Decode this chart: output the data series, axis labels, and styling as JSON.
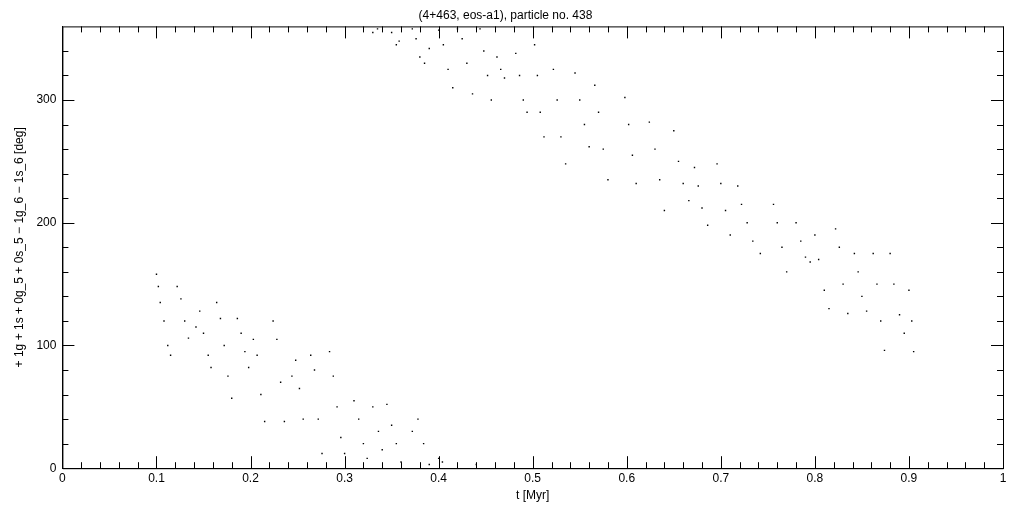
{
  "chart_data": {
    "type": "scatter",
    "title": "(4+463, eos-a1), particle no. 438",
    "xlabel": "t [Myr]",
    "ylabel": "+ 1g + 1s + 0g_5 + 0s_5 − 1g_6 − 1s_6 [deg]",
    "xlim": [
      0,
      1
    ],
    "ylim": [
      0,
      360
    ],
    "xticks": [
      0,
      {
        "value": 0.02,
        "label": null
      },
      {
        "value": 0.04,
        "label": null
      },
      {
        "value": 0.06,
        "label": null
      },
      {
        "value": 0.08,
        "label": null
      },
      0.1,
      {
        "value": 0.12,
        "label": null
      },
      {
        "value": 0.14,
        "label": null
      },
      {
        "value": 0.16,
        "label": null
      },
      {
        "value": 0.18,
        "label": null
      },
      0.2,
      {
        "value": 0.22,
        "label": null
      },
      {
        "value": 0.24,
        "label": null
      },
      {
        "value": 0.26,
        "label": null
      },
      {
        "value": 0.28,
        "label": null
      },
      0.3,
      {
        "value": 0.32,
        "label": null
      },
      {
        "value": 0.34,
        "label": null
      },
      {
        "value": 0.36,
        "label": null
      },
      {
        "value": 0.38,
        "label": null
      },
      0.4,
      {
        "value": 0.42,
        "label": null
      },
      {
        "value": 0.44,
        "label": null
      },
      {
        "value": 0.46,
        "label": null
      },
      {
        "value": 0.48,
        "label": null
      },
      0.5,
      {
        "value": 0.52,
        "label": null
      },
      {
        "value": 0.54,
        "label": null
      },
      {
        "value": 0.56,
        "label": null
      },
      {
        "value": 0.58,
        "label": null
      },
      0.6,
      {
        "value": 0.62,
        "label": null
      },
      {
        "value": 0.64,
        "label": null
      },
      {
        "value": 0.66,
        "label": null
      },
      {
        "value": 0.68,
        "label": null
      },
      0.7,
      {
        "value": 0.72,
        "label": null
      },
      {
        "value": 0.74,
        "label": null
      },
      {
        "value": 0.76,
        "label": null
      },
      {
        "value": 0.78,
        "label": null
      },
      0.8,
      {
        "value": 0.82,
        "label": null
      },
      {
        "value": 0.84,
        "label": null
      },
      {
        "value": 0.86,
        "label": null
      },
      {
        "value": 0.88,
        "label": null
      },
      0.9,
      {
        "value": 0.92,
        "label": null
      },
      {
        "value": 0.94,
        "label": null
      },
      {
        "value": 0.96,
        "label": null
      },
      {
        "value": 0.98,
        "label": null
      },
      1
    ],
    "yticks": [
      0,
      {
        "value": 20,
        "label": null
      },
      {
        "value": 40,
        "label": null
      },
      {
        "value": 60,
        "label": null
      },
      {
        "value": 80,
        "label": null
      },
      100,
      {
        "value": 120,
        "label": null
      },
      {
        "value": 140,
        "label": null
      },
      {
        "value": 160,
        "label": null
      },
      {
        "value": 180,
        "label": null
      },
      200,
      {
        "value": 220,
        "label": null
      },
      {
        "value": 240,
        "label": null
      },
      {
        "value": 260,
        "label": null
      },
      {
        "value": 280,
        "label": null
      },
      300,
      {
        "value": 320,
        "label": null
      },
      {
        "value": 340,
        "label": null
      }
    ],
    "grid": false,
    "legend": false,
    "marker": "square",
    "series": [
      {
        "color": "#000000",
        "x": [
          0.1,
          0.102,
          0.104,
          0.108,
          0.112,
          0.115,
          0.122,
          0.126,
          0.13,
          0.134,
          0.142,
          0.146,
          0.15,
          0.155,
          0.158,
          0.164,
          0.168,
          0.172,
          0.176,
          0.18,
          0.186,
          0.19,
          0.194,
          0.198,
          0.203,
          0.207,
          0.211,
          0.215,
          0.224,
          0.228,
          0.232,
          0.236,
          0.244,
          0.248,
          0.252,
          0.256,
          0.264,
          0.268,
          0.272,
          0.276,
          0.284,
          0.288,
          0.292,
          0.296,
          0.3,
          0.31,
          0.315,
          0.32,
          0.324,
          0.33,
          0.336,
          0.34,
          0.345,
          0.35,
          0.355,
          0.36,
          0.372,
          0.378,
          0.384,
          0.39,
          0.4,
          0.404,
          0.44
        ],
        "values": [
          158,
          148,
          135,
          120,
          100,
          92,
          148,
          138,
          120,
          106,
          115,
          128,
          110,
          92,
          82,
          135,
          122,
          100,
          75,
          57,
          122,
          110,
          95,
          82,
          105,
          92,
          60,
          38,
          120,
          105,
          70,
          38,
          75,
          88,
          65,
          40,
          92,
          80,
          40,
          12,
          95,
          75,
          50,
          25,
          12,
          55,
          40,
          20,
          8,
          50,
          30,
          15,
          52,
          35,
          20,
          5,
          30,
          40,
          20,
          3,
          8,
          5,
          3
        ]
      },
      {
        "color": "#000000",
        "x": [
          0.33,
          0.335,
          0.35,
          0.355,
          0.358,
          0.372,
          0.376,
          0.38,
          0.385,
          0.39,
          0.4,
          0.405,
          0.41,
          0.415,
          0.42,
          0.425,
          0.43,
          0.436,
          0.444,
          0.448,
          0.452,
          0.456,
          0.462,
          0.466,
          0.47,
          0.482,
          0.486,
          0.49,
          0.494,
          0.502,
          0.505,
          0.508,
          0.512,
          0.522,
          0.526,
          0.53,
          0.535,
          0.545,
          0.55,
          0.555,
          0.56,
          0.566,
          0.57,
          0.575,
          0.58,
          0.598,
          0.602,
          0.606,
          0.61,
          0.624,
          0.63,
          0.635,
          0.64,
          0.65,
          0.655,
          0.66,
          0.666,
          0.672,
          0.676,
          0.68,
          0.686,
          0.696,
          0.7,
          0.705,
          0.71,
          0.718,
          0.722,
          0.728,
          0.734,
          0.742,
          0.756,
          0.76,
          0.765,
          0.77,
          0.78,
          0.785,
          0.79,
          0.795,
          0.8,
          0.804,
          0.81,
          0.815,
          0.822,
          0.826,
          0.83,
          0.835,
          0.842,
          0.846,
          0.85,
          0.855,
          0.862,
          0.866,
          0.87,
          0.874,
          0.88,
          0.884,
          0.89,
          0.895,
          0.9,
          0.903,
          0.905
        ],
        "values": [
          355,
          358,
          355,
          345,
          348,
          358,
          350,
          335,
          330,
          342,
          357,
          345,
          325,
          310,
          358,
          350,
          330,
          305,
          358,
          340,
          320,
          300,
          335,
          325,
          318,
          338,
          320,
          300,
          290,
          345,
          320,
          290,
          270,
          325,
          300,
          270,
          248,
          322,
          300,
          280,
          262,
          312,
          290,
          260,
          235,
          302,
          280,
          255,
          232,
          282,
          260,
          235,
          210,
          275,
          250,
          232,
          218,
          245,
          230,
          212,
          198,
          248,
          232,
          210,
          190,
          230,
          215,
          200,
          185,
          175,
          215,
          200,
          180,
          160,
          200,
          185,
          172,
          168,
          190,
          170,
          145,
          130,
          195,
          180,
          150,
          126,
          175,
          160,
          140,
          128,
          175,
          150,
          120,
          96,
          175,
          150,
          125,
          110,
          145,
          120,
          95
        ]
      }
    ]
  }
}
